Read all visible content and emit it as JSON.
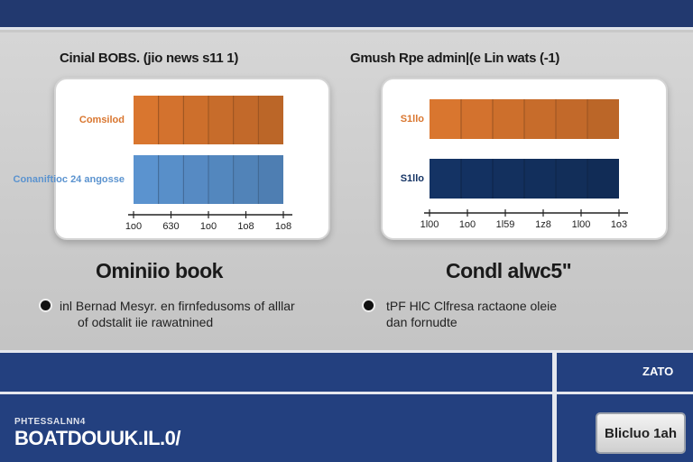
{
  "panels": [
    {
      "heading": "Cinial BOBS. (jio news s11 1)",
      "title": "Ominiio book",
      "desc_lines": [
        "inl Bernad Mesyr. en firnfedusoms of alllar",
        "of odstalit iie rawatnined"
      ]
    },
    {
      "heading": "Gmush Rpe admin|(e Lin wats (-1)",
      "title": "Condl alwc5\"",
      "desc_lines": [
        "tPF HlC Clfresa ractaone oleie",
        "dan fornudte"
      ]
    }
  ],
  "chart_data": [
    {
      "type": "bar",
      "orientation": "horizontal",
      "categories": [
        "Comsilod",
        "Conaniftioc 24 angosse"
      ],
      "values": [
        1,
        1
      ],
      "tick_labels": [
        "1o0",
        "630",
        "1o0",
        "1o8",
        "1o8"
      ],
      "colors": [
        "#d9762f",
        "#5b93cf"
      ]
    },
    {
      "type": "bar",
      "orientation": "horizontal",
      "categories": [
        "S1llo",
        "S1llo"
      ],
      "values": [
        1,
        1
      ],
      "tick_labels": [
        "1l00",
        "1o0",
        "1l59",
        "1z8",
        "1l00",
        "1o3"
      ],
      "colors": [
        "#d9762f",
        "#143364"
      ]
    }
  ],
  "footer": {
    "tag": "ZATO",
    "brand_small": "PHTESSALNN4",
    "brand_large": "BOATDOUUK.IL.0/",
    "button_label": "Blicluo 1ah"
  }
}
